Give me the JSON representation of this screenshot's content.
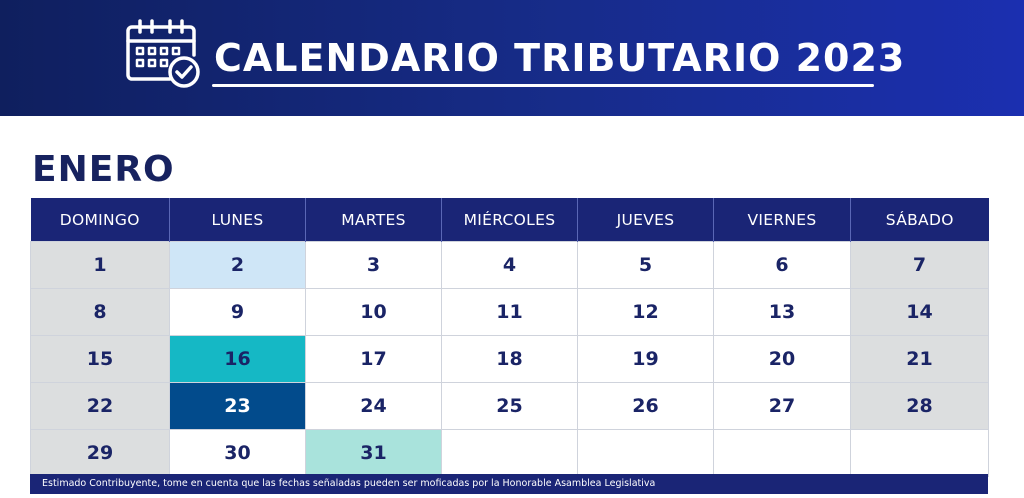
{
  "header": {
    "title": "CALENDARIO TRIBUTARIO 2023",
    "icon": "calendar-check-icon",
    "colors": {
      "banner_start": "#0f1f5e",
      "banner_end": "#1b2fb0"
    }
  },
  "month": "ENERO",
  "weekdays": [
    "DOMINGO",
    "LUNES",
    "MARTES",
    "MIÉRCOLES",
    "JUEVES",
    "VIERNES",
    "SÁBADO"
  ],
  "weeks": [
    [
      "1",
      "2",
      "3",
      "4",
      "5",
      "6",
      "7"
    ],
    [
      "8",
      "9",
      "10",
      "11",
      "12",
      "13",
      "14"
    ],
    [
      "15",
      "16",
      "17",
      "18",
      "19",
      "20",
      "21"
    ],
    [
      "22",
      "23",
      "24",
      "25",
      "26",
      "27",
      "28"
    ],
    [
      "29",
      "30",
      "31",
      "",
      "",
      "",
      ""
    ]
  ],
  "highlights": {
    "2": "#cfe6f7",
    "16": "#15b8c5",
    "23": "#024b8c",
    "31": "#a9e3dc"
  },
  "colors": {
    "weekend": "#dcdedf",
    "header_row": "#1a2576",
    "day_text": "#1a2466"
  },
  "footer": {
    "note": "Estimado Contribuyente, tome en cuenta que las fechas señaladas pueden ser moficadas por la Honorable Asamblea Legislativa"
  }
}
